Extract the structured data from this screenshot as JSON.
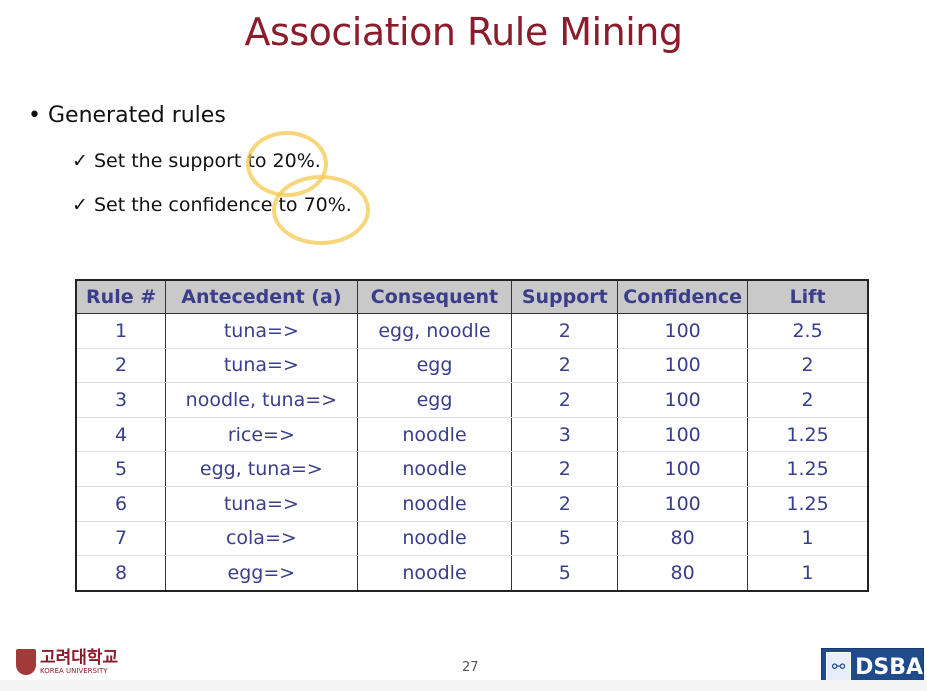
{
  "title": "Association Rule Mining",
  "bullet": "Generated rules",
  "subs": [
    "✓ Set the support to 20%.",
    "✓ Set the confidence to 70%."
  ],
  "table": {
    "headers": [
      "Rule #",
      "Antecedent (a)",
      "Consequent",
      "Support",
      "Confidence",
      "Lift"
    ],
    "rows": [
      [
        "1",
        "tuna=>",
        "egg, noodle",
        "2",
        "100",
        "2.5"
      ],
      [
        "2",
        "tuna=>",
        "egg",
        "2",
        "100",
        "2"
      ],
      [
        "3",
        "noodle, tuna=>",
        "egg",
        "2",
        "100",
        "2"
      ],
      [
        "4",
        "rice=>",
        "noodle",
        "3",
        "100",
        "1.25"
      ],
      [
        "5",
        "egg, tuna=>",
        "noodle",
        "2",
        "100",
        "1.25"
      ],
      [
        "6",
        "tuna=>",
        "noodle",
        "2",
        "100",
        "1.25"
      ],
      [
        "7",
        "cola=>",
        "noodle",
        "5",
        "80",
        "1"
      ],
      [
        "8",
        "egg=>",
        "noodle",
        "5",
        "80",
        "1"
      ]
    ]
  },
  "footer": {
    "page": "27",
    "university_kr": "고려대학교",
    "university_en": "KOREA UNIVERSITY",
    "logo": "DSBA"
  },
  "colors": {
    "title": "#8a1c2c",
    "table_text": "#3a3d8a",
    "header_bg": "#c9c9c9",
    "highlight": "#f5c850"
  }
}
